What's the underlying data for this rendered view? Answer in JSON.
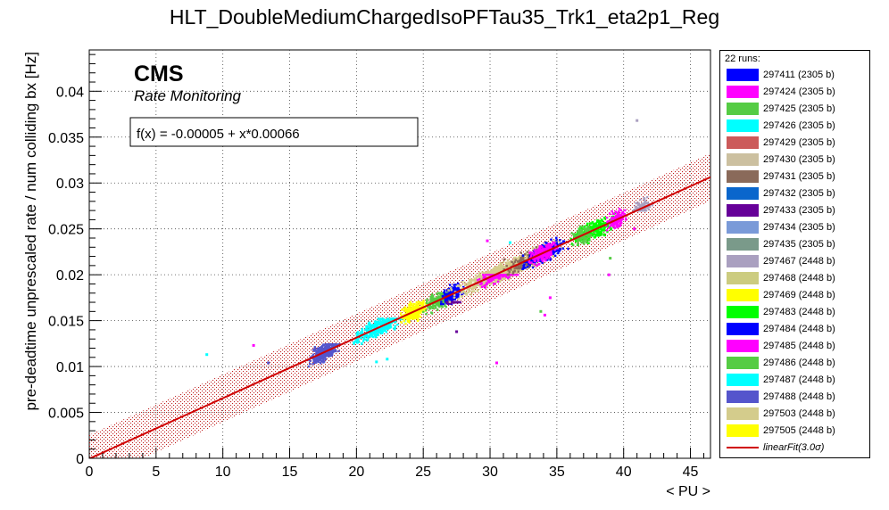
{
  "title": "HLT_DoubleMediumChargedIsoPFTau35_Trk1_eta2p1_Reg",
  "cms_label": "CMS",
  "cms_sublabel": "Rate Monitoring",
  "fit_box_text": "f(x) = -0.00005 + x*0.00066",
  "legend": {
    "header": "22 runs:",
    "fit_label": "linearFit(3.0σ)",
    "fit_color": "#d00000",
    "runs": [
      {
        "label": "297411 (2305 b)",
        "color": "#0000ff"
      },
      {
        "label": "297424 (2305 b)",
        "color": "#ff00ff"
      },
      {
        "label": "297425 (2305 b)",
        "color": "#55cc44"
      },
      {
        "label": "297426 (2305 b)",
        "color": "#00ffff"
      },
      {
        "label": "297429 (2305 b)",
        "color": "#cc5a5a"
      },
      {
        "label": "297430 (2305 b)",
        "color": "#ccc0a0"
      },
      {
        "label": "297431 (2305 b)",
        "color": "#8a6a5a"
      },
      {
        "label": "297432 (2305 b)",
        "color": "#0a66cc"
      },
      {
        "label": "297433 (2305 b)",
        "color": "#660099"
      },
      {
        "label": "297434 (2305 b)",
        "color": "#7a9ad8"
      },
      {
        "label": "297435 (2305 b)",
        "color": "#7a9a8a"
      },
      {
        "label": "297467 (2448 b)",
        "color": "#aaa0c0"
      },
      {
        "label": "297468 (2448 b)",
        "color": "#cccc80"
      },
      {
        "label": "297469 (2448 b)",
        "color": "#ffff00"
      },
      {
        "label": "297483 (2448 b)",
        "color": "#00ff00"
      },
      {
        "label": "297484 (2448 b)",
        "color": "#0000ff"
      },
      {
        "label": "297485 (2448 b)",
        "color": "#ff00ff"
      },
      {
        "label": "297486 (2448 b)",
        "color": "#55cc44"
      },
      {
        "label": "297487 (2448 b)",
        "color": "#00ffff"
      },
      {
        "label": "297488 (2448 b)",
        "color": "#5555cc"
      },
      {
        "label": "297503 (2448 b)",
        "color": "#d4cc8c"
      },
      {
        "label": "297505 (2448 b)",
        "color": "#ffff00"
      }
    ]
  },
  "chart_data": {
    "type": "scatter",
    "title": "HLT_DoubleMediumChargedIsoPFTau35_Trk1_eta2p1_Reg",
    "xlabel": "< PU >",
    "ylabel": "pre-deadtime unprescaled rate / num colliding bx [Hz]",
    "xlim": [
      0,
      46.5
    ],
    "ylim": [
      0,
      0.0445
    ],
    "xticks": [
      0,
      5,
      10,
      15,
      20,
      25,
      30,
      35,
      40,
      45
    ],
    "yticks": [
      0,
      0.005,
      0.01,
      0.015,
      0.02,
      0.025,
      0.03,
      0.035,
      0.04
    ],
    "ytick_labels": [
      "0",
      "0.005",
      "0.01",
      "0.015",
      "0.02",
      "0.025",
      "0.03",
      "0.035",
      "0.04"
    ],
    "grid": true,
    "fit": {
      "intercept": -5e-05,
      "slope": 0.00066,
      "band_halfwidth": 0.0026,
      "band_color": "#c02020"
    },
    "clusters": [
      {
        "color": "#5555cc",
        "pu": [
          16.2,
          19.0
        ],
        "rate": [
          0.01,
          0.0124
        ],
        "n": 320
      },
      {
        "color": "#00ffff",
        "pu": [
          19.3,
          23.8
        ],
        "rate": [
          0.0112,
          0.0152
        ],
        "n": 340
      },
      {
        "color": "#ffff00",
        "pu": [
          23.0,
          25.5
        ],
        "rate": [
          0.014,
          0.0178
        ],
        "n": 260
      },
      {
        "color": "#55cc44",
        "pu": [
          24.8,
          27.8
        ],
        "rate": [
          0.015,
          0.018
        ],
        "n": 220
      },
      {
        "color": "#0000ff",
        "pu": [
          26.0,
          28.3
        ],
        "rate": [
          0.0168,
          0.0202
        ],
        "n": 160
      },
      {
        "color": "#660099",
        "pu": [
          26.5,
          28.0
        ],
        "rate": [
          0.0152,
          0.017
        ],
        "n": 60
      },
      {
        "color": "#d4cc8c",
        "pu": [
          26.5,
          36.0
        ],
        "rate": [
          0.016,
          0.025
        ],
        "n": 900
      },
      {
        "color": "#ff00ff",
        "pu": [
          28.8,
          32.5
        ],
        "rate": [
          0.0168,
          0.02
        ],
        "n": 200
      },
      {
        "color": "#8a6a5a",
        "pu": [
          30.5,
          34.5
        ],
        "rate": [
          0.02,
          0.023
        ],
        "n": 120
      },
      {
        "color": "#0000ff",
        "pu": [
          32.0,
          36.0
        ],
        "rate": [
          0.0205,
          0.0258
        ],
        "n": 260
      },
      {
        "color": "#ff00ff",
        "pu": [
          32.5,
          35.5
        ],
        "rate": [
          0.0205,
          0.0235
        ],
        "n": 200
      },
      {
        "color": "#00ff00",
        "pu": [
          35.5,
          40.0
        ],
        "rate": [
          0.0225,
          0.0272
        ],
        "n": 260
      },
      {
        "color": "#55cc44",
        "pu": [
          36.0,
          38.0
        ],
        "rate": [
          0.022,
          0.0255
        ],
        "n": 100
      },
      {
        "color": "#ff00ff",
        "pu": [
          38.5,
          40.5
        ],
        "rate": [
          0.0245,
          0.028
        ],
        "n": 140
      },
      {
        "color": "#aaa0c0",
        "pu": [
          40.5,
          42.2
        ],
        "rate": [
          0.027,
          0.03
        ],
        "n": 120
      }
    ],
    "outliers": [
      {
        "x": 8.8,
        "y": 0.0113,
        "color": "#00ffff"
      },
      {
        "x": 12.3,
        "y": 0.0123,
        "color": "#ff00ff"
      },
      {
        "x": 13.4,
        "y": 0.0104,
        "color": "#5555cc"
      },
      {
        "x": 21.5,
        "y": 0.0105,
        "color": "#00ffff"
      },
      {
        "x": 22.3,
        "y": 0.0108,
        "color": "#00ffff"
      },
      {
        "x": 27.5,
        "y": 0.0138,
        "color": "#660099"
      },
      {
        "x": 29.8,
        "y": 0.0237,
        "color": "#ff00ff"
      },
      {
        "x": 30.5,
        "y": 0.0104,
        "color": "#ff00ff"
      },
      {
        "x": 31.5,
        "y": 0.0235,
        "color": "#00ffff"
      },
      {
        "x": 33.8,
        "y": 0.016,
        "color": "#55cc44"
      },
      {
        "x": 34.1,
        "y": 0.0156,
        "color": "#ff00ff"
      },
      {
        "x": 34.5,
        "y": 0.0175,
        "color": "#ff00ff"
      },
      {
        "x": 38.9,
        "y": 0.02,
        "color": "#ff00ff"
      },
      {
        "x": 39.0,
        "y": 0.0218,
        "color": "#55cc44"
      },
      {
        "x": 40.8,
        "y": 0.025,
        "color": "#ff00ff"
      },
      {
        "x": 41.0,
        "y": 0.0368,
        "color": "#aaa0c0"
      }
    ]
  }
}
